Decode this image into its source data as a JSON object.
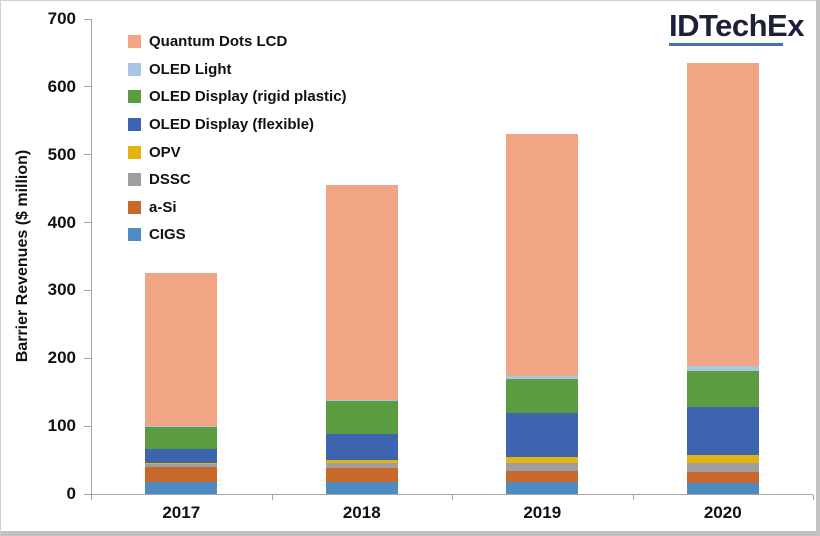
{
  "logo": {
    "text": "IDTechEx",
    "underline_color": "#4372b0"
  },
  "chart_data": {
    "type": "bar",
    "stacked": true,
    "title": "",
    "xlabel": "",
    "ylabel": "Barrier Revenues ($ million)",
    "ylim": [
      0,
      700
    ],
    "yticks": [
      0,
      100,
      200,
      300,
      400,
      500,
      600,
      700
    ],
    "grid": false,
    "legend_position": "top-left",
    "legend_order_note": "legend shown top-to-bottom is reverse of stacking order (bottom segment listed last)",
    "categories": [
      "2017",
      "2018",
      "2019",
      "2020"
    ],
    "series": [
      {
        "name": "CIGS",
        "color": "#4e8bc0",
        "values": [
          17,
          17,
          17,
          16
        ]
      },
      {
        "name": "a-Si",
        "color": "#c8682b",
        "values": [
          23,
          21,
          17,
          17
        ]
      },
      {
        "name": "DSSC",
        "color": "#9e9ea0",
        "values": [
          5,
          7,
          11,
          13
        ]
      },
      {
        "name": "OPV",
        "color": "#e3b40e",
        "values": [
          1,
          5,
          10,
          11
        ]
      },
      {
        "name": "OLED Display (flexible)",
        "color": "#3d64ae",
        "values": [
          21,
          39,
          64,
          71
        ]
      },
      {
        "name": "OLED Display (rigid plastic)",
        "color": "#5b9c41",
        "values": [
          32,
          48,
          51,
          54
        ]
      },
      {
        "name": "OLED Light",
        "color": "#a8c6e8",
        "values": [
          1,
          2,
          4,
          6
        ]
      },
      {
        "name": "Quantum Dots LCD",
        "color": "#f2a585",
        "values": [
          225,
          317,
          357,
          447
        ]
      }
    ],
    "totals_by_category": [
      325,
      456,
      531,
      635
    ]
  }
}
